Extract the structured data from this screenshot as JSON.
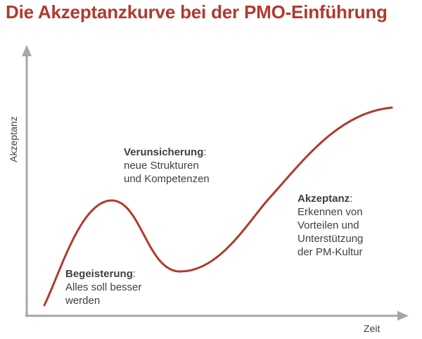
{
  "title": "Die Akzeptanzkurve bei der PMO-Einführung",
  "axes": {
    "y_label": "Akzeptanz",
    "x_label": "Zeit"
  },
  "phases": [
    {
      "heading": "Begeisterung",
      "lines": [
        "Alles soll besser",
        "werden"
      ]
    },
    {
      "heading": "Verunsicherung",
      "lines": [
        "neue Strukturen",
        "und Kompetenzen"
      ]
    },
    {
      "heading": "Akzeptanz",
      "lines": [
        "Erkennen von",
        "Vorteilen und",
        "Unterstützung",
        "der PM-Kultur"
      ]
    }
  ],
  "colors": {
    "title": "#b03a2e",
    "curve": "#b03a2e",
    "axes": "#a6a6a6",
    "text": "#404040"
  }
}
